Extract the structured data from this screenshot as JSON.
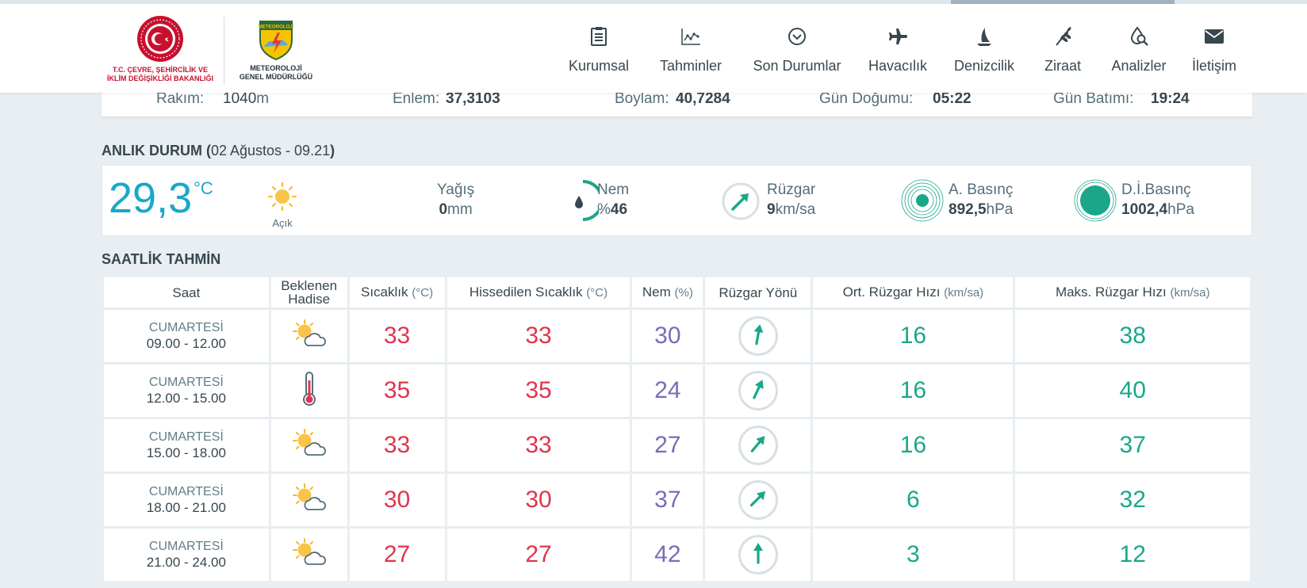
{
  "header": {
    "ministry_name": "T.C. ÇEVRE, ŞEHİRCİLİK VE İKLİM DEĞİŞİKLİĞİ BAKANLIĞI",
    "ministry_line1": "T.C. ÇEVRE, ŞEHİRCİLİK VE",
    "ministry_line2": "İKLİM DEĞİŞİKLİĞİ BAKANLIĞI",
    "mgm_badge": "METEOROLOJİ",
    "mgm_line1": "METEOROLOJİ",
    "mgm_line2": "GENEL MÜDÜRLÜĞÜ",
    "nav": [
      {
        "label": "Kurumsal",
        "icon": "clipboard-icon"
      },
      {
        "label": "Tahminler",
        "icon": "chart-icon"
      },
      {
        "label": "Son Durumlar",
        "icon": "chevron-circle-icon"
      },
      {
        "label": "Havacılık",
        "icon": "plane-icon"
      },
      {
        "label": "Denizcilik",
        "icon": "sail-icon"
      },
      {
        "label": "Ziraat",
        "icon": "wheat-icon"
      },
      {
        "label": "Analizler",
        "icon": "drop-search-icon"
      },
      {
        "label": "İletişim",
        "icon": "envelope-icon"
      }
    ]
  },
  "location_info": {
    "rakim_label": "Rakım:",
    "rakim_value": "1040",
    "rakim_unit": "m",
    "enlem_label": "Enlem:",
    "enlem_value": "37,3103",
    "boylam_label": "Boylam:",
    "boylam_value": "40,7284",
    "gun_dogumu_label": "Gün Doğumu:",
    "gun_dogumu_value": "05:22",
    "gun_batimi_label": "Gün Batımı:",
    "gun_batimi_value": "19:24"
  },
  "current": {
    "title_prefix": "ANLIK DURUM (",
    "title_time": "02 Ağustos - 09.21",
    "title_suffix": ")",
    "temperature": "29,3",
    "temperature_unit": "°C",
    "condition": "Açık",
    "yagis_label": "Yağış",
    "yagis_value": "0",
    "yagis_unit": "mm",
    "nem_label": "Nem",
    "nem_prefix": "%",
    "nem_value": "46",
    "ruzgar_label": "Rüzgar",
    "ruzgar_value": "9",
    "ruzgar_unit": "km/sa",
    "a_basinc_label": "A. Basınç",
    "a_basinc_value": "892,5",
    "a_basinc_unit": "hPa",
    "di_basinc_label": "D.İ.Basınç",
    "di_basinc_value": "1002,4",
    "di_basinc_unit": "hPa",
    "colors": {
      "temperature": "#17a9c9",
      "accent": "#1aa789"
    }
  },
  "hourly": {
    "title": "SAATLİK TAHMİN",
    "columns": {
      "saat": "Saat",
      "hadise_1": "Beklenen",
      "hadise_2": "Hadise",
      "sicaklik": "Sıcaklık",
      "sicaklik_unit": "(°C)",
      "hissedilen": "Hissedilen Sıcaklık",
      "hissedilen_unit": "(°C)",
      "nem": "Nem",
      "nem_unit": "(%)",
      "ruzgar_yonu": "Rüzgar Yönü",
      "ort_ruzgar": "Ort. Rüzgar Hızı",
      "ort_ruzgar_unit": "(km/sa)",
      "maks_ruzgar": "Maks. Rüzgar Hızı",
      "maks_ruzgar_unit": "(km/sa)"
    },
    "rows": [
      {
        "day": "CUMARTESİ",
        "time": "09.00 - 12.00",
        "icon": "partly-cloudy-icon",
        "temp": "33",
        "feels": "33",
        "humidity": "30",
        "wind_dir_deg": 10,
        "wind_avg": "16",
        "wind_max": "38"
      },
      {
        "day": "CUMARTESİ",
        "time": "12.00 - 15.00",
        "icon": "thermometer-icon",
        "temp": "35",
        "feels": "35",
        "humidity": "24",
        "wind_dir_deg": 25,
        "wind_avg": "16",
        "wind_max": "40"
      },
      {
        "day": "CUMARTESİ",
        "time": "15.00 - 18.00",
        "icon": "partly-cloudy-icon",
        "temp": "33",
        "feels": "33",
        "humidity": "27",
        "wind_dir_deg": 40,
        "wind_avg": "16",
        "wind_max": "37"
      },
      {
        "day": "CUMARTESİ",
        "time": "18.00 - 21.00",
        "icon": "partly-cloudy-icon",
        "temp": "30",
        "feels": "30",
        "humidity": "37",
        "wind_dir_deg": 45,
        "wind_avg": "6",
        "wind_max": "32"
      },
      {
        "day": "CUMARTESİ",
        "time": "21.00 - 24.00",
        "icon": "partly-cloudy-icon",
        "temp": "27",
        "feels": "27",
        "humidity": "42",
        "wind_dir_deg": 0,
        "wind_avg": "3",
        "wind_max": "12"
      }
    ]
  }
}
